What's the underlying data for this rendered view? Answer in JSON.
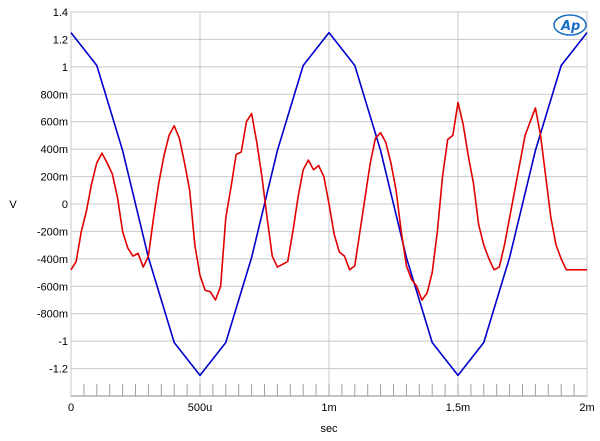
{
  "chart_data": {
    "type": "line",
    "title": "",
    "xlabel": "sec",
    "ylabel": "V",
    "xlim": [
      0,
      0.002
    ],
    "ylim": [
      -1.4,
      1.4
    ],
    "grid": true,
    "x_ticks": [
      {
        "value": 0,
        "label": "0"
      },
      {
        "value": 0.0005,
        "label": "500u"
      },
      {
        "value": 0.001,
        "label": "1m"
      },
      {
        "value": 0.0015,
        "label": "1.5m"
      },
      {
        "value": 0.002,
        "label": "2m"
      }
    ],
    "y_ticks": [
      {
        "value": 1.4,
        "label": "1.4"
      },
      {
        "value": 1.2,
        "label": "1.2"
      },
      {
        "value": 1.0,
        "label": "1"
      },
      {
        "value": 0.8,
        "label": "800m"
      },
      {
        "value": 0.6,
        "label": "600m"
      },
      {
        "value": 0.4,
        "label": "400m"
      },
      {
        "value": 0.2,
        "label": "200m"
      },
      {
        "value": 0.0,
        "label": "0"
      },
      {
        "value": -0.2,
        "label": "-200m"
      },
      {
        "value": -0.4,
        "label": "-400m"
      },
      {
        "value": -0.6,
        "label": "-600m"
      },
      {
        "value": -0.8,
        "label": "-800m"
      },
      {
        "value": -1.0,
        "label": "-1"
      },
      {
        "value": -1.2,
        "label": "-1.2"
      }
    ],
    "series": [
      {
        "color": "#0000cc",
        "x": [
          0,
          0.0001,
          0.0002,
          0.0003,
          0.0004,
          0.0005,
          0.0006,
          0.0007,
          0.0008,
          0.0009,
          0.001,
          0.0011,
          0.0012,
          0.0013,
          0.0014,
          0.0015,
          0.0016,
          0.0017,
          0.0018,
          0.0019,
          0.002
        ],
        "values": [
          1.25,
          1.01,
          0.39,
          -0.39,
          -1.01,
          -1.25,
          -1.01,
          -0.39,
          0.39,
          1.01,
          1.25,
          1.01,
          0.39,
          -0.39,
          -1.01,
          -1.25,
          -1.01,
          -0.39,
          0.39,
          1.01,
          1.25
        ]
      },
      {
        "color": "#e00000",
        "x": [
          0,
          2e-05,
          4e-05,
          6e-05,
          8e-05,
          0.0001,
          0.00012,
          0.00014,
          0.00016,
          0.00018,
          0.0002,
          0.00022,
          0.00024,
          0.00026,
          0.00028,
          0.0003,
          0.00032,
          0.00034,
          0.00036,
          0.00038,
          0.0004,
          0.00042,
          0.00044,
          0.00046,
          0.00048,
          0.0005,
          0.00052,
          0.00054,
          0.00056,
          0.00058,
          0.0006,
          0.00062,
          0.00064,
          0.00066,
          0.00068,
          0.0007,
          0.00072,
          0.00074,
          0.00076,
          0.00078,
          0.0008,
          0.00082,
          0.00084,
          0.00086,
          0.00088,
          0.0009,
          0.00092,
          0.00094,
          0.00096,
          0.00098,
          0.001,
          0.00102,
          0.00104,
          0.00106,
          0.00108,
          0.0011,
          0.00112,
          0.00114,
          0.00116,
          0.00118,
          0.0012,
          0.00122,
          0.00124,
          0.00126,
          0.00128,
          0.0013,
          0.00132,
          0.00134,
          0.00136,
          0.00138,
          0.0014,
          0.00142,
          0.00144,
          0.00146,
          0.00148,
          0.0015,
          0.00152,
          0.00154,
          0.00156,
          0.00158,
          0.0016,
          0.00162,
          0.00164,
          0.00166,
          0.00168,
          0.0017,
          0.00172,
          0.00174,
          0.00176,
          0.00178,
          0.0018,
          0.00182,
          0.00184,
          0.00186,
          0.00188,
          0.0019,
          0.00192,
          0.00194,
          0.00196,
          0.00198,
          0.002
        ],
        "values": [
          -0.48,
          -0.42,
          -0.2,
          -0.05,
          0.15,
          0.3,
          0.37,
          0.3,
          0.22,
          0.05,
          -0.2,
          -0.32,
          -0.38,
          -0.36,
          -0.46,
          -0.38,
          -0.1,
          0.15,
          0.35,
          0.5,
          0.57,
          0.48,
          0.3,
          0.1,
          -0.3,
          -0.52,
          -0.63,
          -0.64,
          -0.7,
          -0.6,
          -0.1,
          0.12,
          0.36,
          0.38,
          0.6,
          0.66,
          0.45,
          0.2,
          -0.1,
          -0.38,
          -0.46,
          -0.44,
          -0.42,
          -0.2,
          0.05,
          0.25,
          0.32,
          0.25,
          0.28,
          0.2,
          0.0,
          -0.22,
          -0.35,
          -0.38,
          -0.48,
          -0.45,
          -0.2,
          0.05,
          0.3,
          0.48,
          0.52,
          0.45,
          0.3,
          0.1,
          -0.2,
          -0.45,
          -0.55,
          -0.6,
          -0.7,
          -0.65,
          -0.5,
          -0.2,
          0.2,
          0.47,
          0.5,
          0.74,
          0.58,
          0.35,
          0.15,
          -0.15,
          -0.3,
          -0.4,
          -0.48,
          -0.46,
          -0.3,
          -0.1,
          0.1,
          0.3,
          0.5,
          0.6,
          0.7,
          0.5,
          0.2,
          -0.1,
          -0.3,
          -0.4,
          -0.48,
          -0.48,
          -0.48,
          -0.48,
          -0.48
        ]
      }
    ]
  },
  "logo": {
    "text": "Ap",
    "color": "#1a6fc4"
  }
}
